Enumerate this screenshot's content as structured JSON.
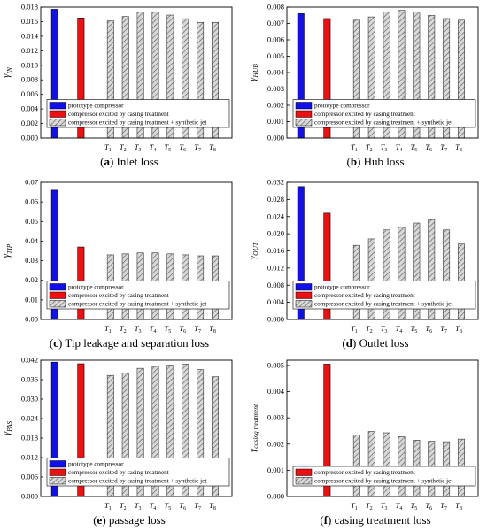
{
  "colors": {
    "prototype": "#1010ee",
    "casing": "#ee1010",
    "jet_fill": "#d9d9d9",
    "hatch": "#555555"
  },
  "legend_labels": {
    "prototype": "prototype compressor",
    "casing": "compressor excited by casing treatment",
    "jet": "compressor excited by casing treatment + synthetic jet"
  },
  "chart_data": [
    {
      "type": "bar",
      "panel": "(a)",
      "title": "Inlet loss",
      "ylabel": "γIN",
      "ylabel_base": "γ",
      "ylabel_sub": "IN",
      "ylim": [
        0,
        0.018
      ],
      "yticks": [
        "0.000",
        "0.002",
        "0.004",
        "0.006",
        "0.008",
        "0.010",
        "0.012",
        "0.014",
        "0.016",
        "0.018"
      ],
      "legend_items": [
        "prototype",
        "casing",
        "jet"
      ],
      "prototype_value": 0.0177,
      "casing_value": 0.0165,
      "categories": [
        "T1",
        "T2",
        "T3",
        "T4",
        "T5",
        "T6",
        "T7",
        "T8"
      ],
      "series": [
        {
          "name": "compressor excited by casing treatment + synthetic jet",
          "values": [
            0.0161,
            0.0167,
            0.0173,
            0.0173,
            0.0169,
            0.0164,
            0.0159,
            0.0159
          ]
        }
      ]
    },
    {
      "type": "bar",
      "panel": "(b)",
      "title": "Hub loss",
      "ylabel": "γHUB",
      "ylabel_base": "γ",
      "ylabel_sub": "HUB",
      "ylim": [
        0,
        0.008
      ],
      "yticks": [
        "0.000",
        "0.001",
        "0.002",
        "0.003",
        "0.004",
        "0.005",
        "0.006",
        "0.007",
        "0.008"
      ],
      "legend_items": [
        "prototype",
        "casing",
        "jet"
      ],
      "prototype_value": 0.0076,
      "casing_value": 0.0073,
      "categories": [
        "T1",
        "T2",
        "T3",
        "T4",
        "T5",
        "T6",
        "T7",
        "T8"
      ],
      "series": [
        {
          "name": "compressor excited by casing treatment + synthetic jet",
          "values": [
            0.0072,
            0.0074,
            0.0077,
            0.0078,
            0.0077,
            0.0075,
            0.0073,
            0.0072
          ]
        }
      ]
    },
    {
      "type": "bar",
      "panel": "(c)",
      "title": "Tip leakage and separation loss",
      "ylabel": "γTIP",
      "ylabel_base": "γ",
      "ylabel_sub": "TIP",
      "ylim": [
        0,
        0.07
      ],
      "yticks": [
        "0.00",
        "0.01",
        "0.02",
        "0.03",
        "0.04",
        "0.05",
        "0.06",
        "0.07"
      ],
      "legend_items": [
        "prototype",
        "casing",
        "jet"
      ],
      "prototype_value": 0.066,
      "casing_value": 0.037,
      "categories": [
        "T1",
        "T2",
        "T3",
        "T4",
        "T5",
        "T6",
        "T7",
        "T8"
      ],
      "series": [
        {
          "name": "compressor excited by casing treatment + synthetic jet",
          "values": [
            0.033,
            0.0335,
            0.034,
            0.034,
            0.0335,
            0.033,
            0.0325,
            0.0325
          ]
        }
      ]
    },
    {
      "type": "bar",
      "panel": "(d)",
      "title": "Outlet loss",
      "ylabel": "γOUT",
      "ylabel_base": "γ",
      "ylabel_sub": "OUT",
      "ylim": [
        0,
        0.032
      ],
      "yticks": [
        "0.000",
        "0.004",
        "0.008",
        "0.012",
        "0.016",
        "0.020",
        "0.024",
        "0.028",
        "0.032"
      ],
      "legend_items": [
        "prototype",
        "casing",
        "jet"
      ],
      "prototype_value": 0.031,
      "casing_value": 0.0248,
      "categories": [
        "T1",
        "T2",
        "T3",
        "T4",
        "T5",
        "T6",
        "T7",
        "T8"
      ],
      "series": [
        {
          "name": "compressor excited by casing treatment + synthetic jet",
          "values": [
            0.0173,
            0.0188,
            0.0209,
            0.0215,
            0.0225,
            0.0233,
            0.0209,
            0.0176
          ]
        }
      ]
    },
    {
      "type": "bar",
      "panel": "(e)",
      "title": "passage loss",
      "ylabel": "γPAS",
      "ylabel_base": "γ",
      "ylabel_sub": "PAS",
      "ylim": [
        0,
        0.042
      ],
      "yticks": [
        "0.000",
        "0.006",
        "0.012",
        "0.018",
        "0.024",
        "0.030",
        "0.036",
        "0.042"
      ],
      "legend_items": [
        "prototype",
        "casing",
        "jet"
      ],
      "prototype_value": 0.0414,
      "casing_value": 0.0409,
      "categories": [
        "T1",
        "T2",
        "T3",
        "T4",
        "T5",
        "T6",
        "T7",
        "T8"
      ],
      "series": [
        {
          "name": "compressor excited by casing treatment + synthetic jet",
          "values": [
            0.0373,
            0.0381,
            0.0395,
            0.0401,
            0.0405,
            0.0408,
            0.0391,
            0.0369
          ]
        }
      ]
    },
    {
      "type": "bar",
      "panel": "(f)",
      "title": "casing treatment loss",
      "ylabel": "γcasing treatment",
      "ylabel_base": "γ",
      "ylabel_sub": "casing treatment",
      "ylim": [
        0,
        0.0052
      ],
      "yticks": [
        "0.000",
        "0.001",
        "0.002",
        "0.003",
        "0.004",
        "0.005"
      ],
      "legend_items": [
        "casing",
        "jet"
      ],
      "prototype_value": null,
      "casing_value": 0.00505,
      "categories": [
        "T1",
        "T2",
        "T3",
        "T4",
        "T5",
        "T6",
        "T7",
        "T8"
      ],
      "series": [
        {
          "name": "compressor excited by casing treatment + synthetic jet",
          "values": [
            0.00235,
            0.00248,
            0.00243,
            0.00228,
            0.00215,
            0.00211,
            0.00209,
            0.00219
          ]
        }
      ]
    }
  ]
}
